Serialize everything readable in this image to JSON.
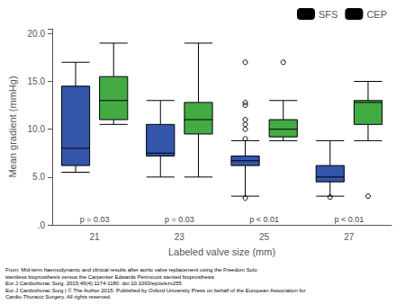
{
  "chart_data": {
    "type": "box",
    "xlabel": "Labeled valve size (mm)",
    "ylabel": "Mean gradient (mmHg)",
    "categories": [
      "21",
      "23",
      "25",
      "27"
    ],
    "series": [
      {
        "name": "SFS",
        "color": "#3355aa",
        "values": [
          {
            "whislo": 5.5,
            "q1": 6.2,
            "med": 8.0,
            "q3": 14.5,
            "whishi": 17.0,
            "fliers": []
          },
          {
            "whislo": 5.0,
            "q1": 7.2,
            "med": 7.5,
            "q3": 10.5,
            "whishi": 13.0,
            "fliers": []
          },
          {
            "whislo": 3.0,
            "q1": 6.2,
            "med": 6.7,
            "q3": 7.2,
            "whishi": 8.8,
            "fliers": [
              2.8,
              9.0,
              10.0,
              10.5,
              11.0,
              12.5,
              12.8,
              17.0
            ]
          },
          {
            "whislo": 3.0,
            "q1": 4.5,
            "med": 5.0,
            "q3": 6.2,
            "whishi": 8.8,
            "fliers": [
              2.9
            ]
          }
        ]
      },
      {
        "name": "CEP",
        "color": "#44aa44",
        "values": [
          {
            "whislo": 10.5,
            "q1": 11.0,
            "med": 13.0,
            "q3": 15.5,
            "whishi": 19.0,
            "fliers": []
          },
          {
            "whislo": 5.0,
            "q1": 9.5,
            "med": 11.0,
            "q3": 12.8,
            "whishi": 19.0,
            "fliers": []
          },
          {
            "whislo": 8.8,
            "q1": 9.2,
            "med": 10.0,
            "q3": 11.0,
            "whishi": 13.0,
            "fliers": [
              17.0
            ]
          },
          {
            "whislo": 8.8,
            "q1": 10.5,
            "med": 12.8,
            "q3": 13.0,
            "whishi": 15.0,
            "fliers": [
              3.0
            ]
          }
        ]
      }
    ],
    "ylim": [
      0,
      20.5
    ],
    "yticks": [
      {
        "value": 0.0,
        "label": ".0"
      },
      {
        "value": 5.0,
        "label": "5.0"
      },
      {
        "value": 10.0,
        "label": "10.0"
      },
      {
        "value": 15.0,
        "label": "15.0"
      },
      {
        "value": 20.0,
        "label": "20.0"
      }
    ],
    "annotations": [
      {
        "category": "21",
        "text": "p = 0.03"
      },
      {
        "category": "23",
        "text": "p = 0.03"
      },
      {
        "category": "25",
        "text": "p < 0.01"
      },
      {
        "category": "27",
        "text": "p < 0.01"
      }
    ],
    "footer": "From: Mid-term haemodynamic and clinical results after aortic valve replacement using the Freedom Solo\nstentless bioprosthesis versus the Carpentier Edwards Perimount stented bioprosthesis\nEur J Cardiothorac Surg. 2015;49(4):1174-1180. doi:10.1093/ejcts/ezv255\nEur J Cardiothorac Surg | © The Author 2015. Published by Oxford University Press on behalf of the European Association for\nCardio-Thoracic Surgery. All rights reserved.",
    "legend": "upper right",
    "grid": false
  }
}
